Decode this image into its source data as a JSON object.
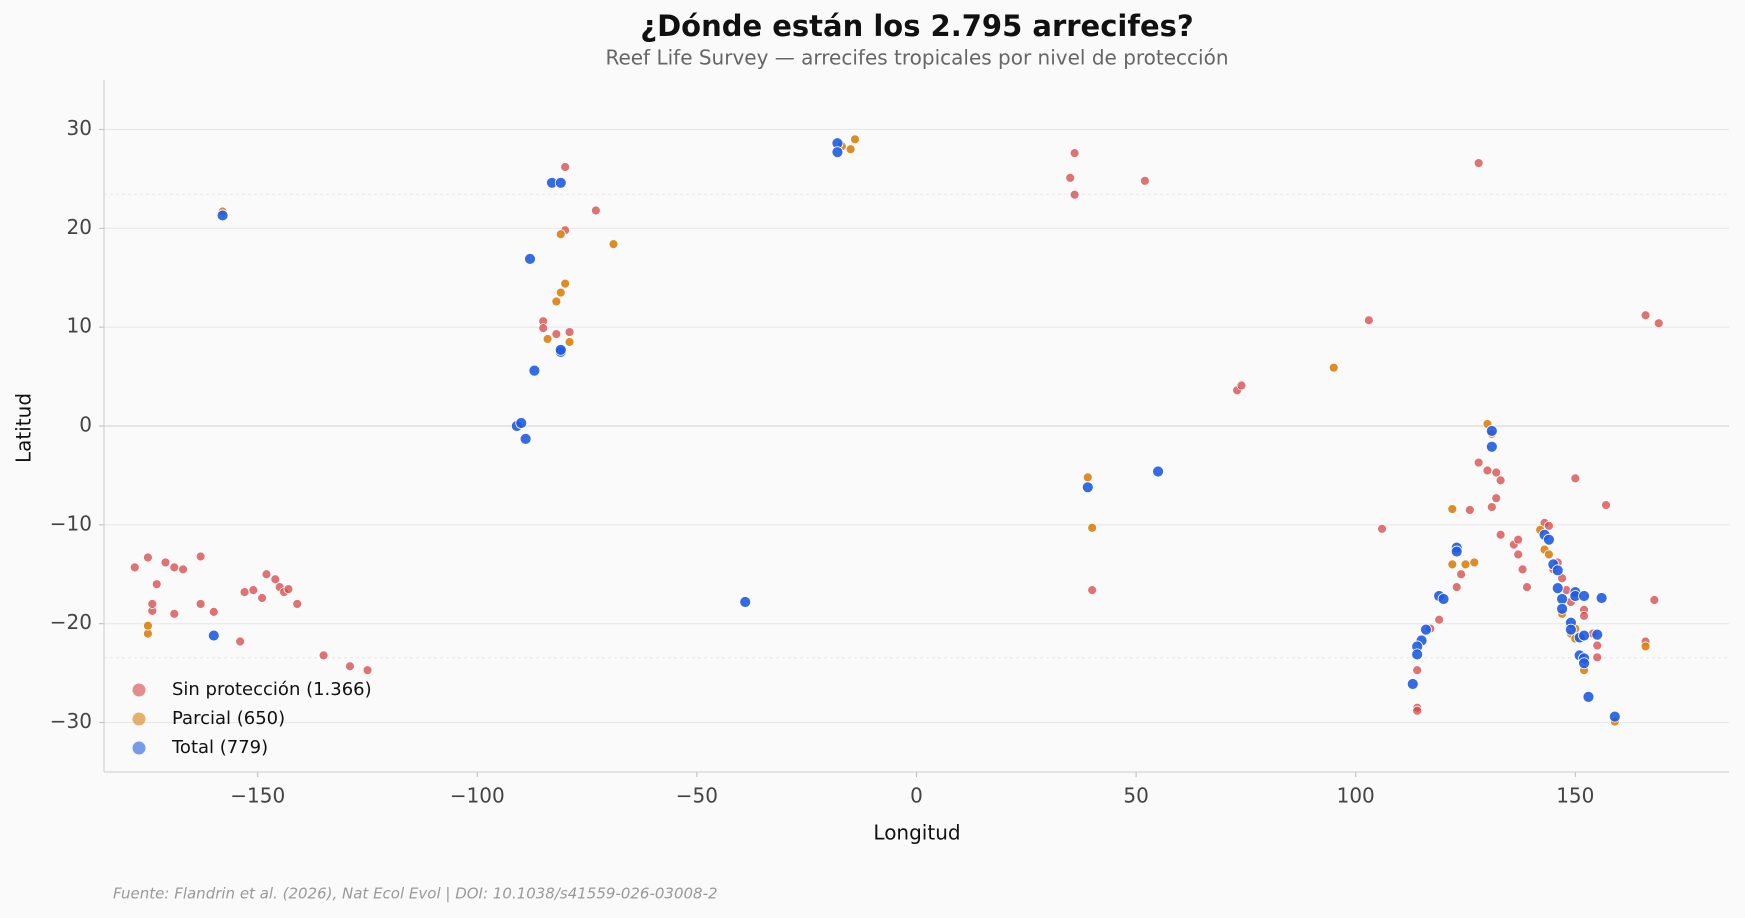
{
  "chart_data": {
    "type": "scatter",
    "title": "¿Dónde están los 2.795 arrecifes?",
    "subtitle": "Reef Life Survey — arrecifes tropicales por nivel de protección",
    "x_label": "Longitud",
    "y_label": "Latitud",
    "source": "Fuente: Flandrin et al. (2026), Nat Ecol Evol | DOI: 10.1038/s41559-026-03008-2",
    "xlim": [
      -185,
      185
    ],
    "ylim": [
      -35,
      35
    ],
    "xticks": [
      {
        "value": -150,
        "label": "−150"
      },
      {
        "value": -100,
        "label": "−100"
      },
      {
        "value": -50,
        "label": "−50"
      },
      0,
      50,
      100,
      150
    ],
    "yticks": [
      {
        "value": -30,
        "label": "−30"
      },
      {
        "value": -20,
        "label": "−20"
      },
      {
        "value": -10,
        "label": "−10"
      },
      0,
      10,
      20,
      30
    ],
    "grid": true,
    "hlines": [
      23.44,
      -23.44
    ],
    "legend": "lower left",
    "series": [
      {
        "name": "Sin protección (1.366)",
        "color": "#d64545",
        "x": [
          -178,
          -175,
          -173,
          -174,
          -171,
          -169,
          -167,
          -169,
          -174,
          -163,
          -163,
          -160,
          -154,
          -151,
          -149,
          -148,
          -146,
          -145,
          -144,
          -143,
          -141,
          -153,
          -135,
          -129,
          -125,
          -80,
          -80,
          -73,
          -85,
          -85,
          -82,
          -79,
          36,
          35,
          36,
          52,
          73,
          74,
          103,
          106,
          128,
          40,
          114,
          114,
          114,
          119,
          117,
          123,
          124,
          126,
          128,
          130,
          132,
          133,
          132,
          131,
          133,
          136,
          137,
          137,
          138,
          139,
          143,
          144,
          145,
          146,
          147,
          148,
          149,
          150,
          152,
          152,
          154,
          155,
          155,
          157,
          166,
          169,
          168,
          166
        ],
        "y": [
          -14.3,
          -13.3,
          -16,
          -18.7,
          -13.8,
          -14.3,
          -14.5,
          -19,
          -18,
          -13.2,
          -18,
          -18.8,
          -21.8,
          -16.6,
          -17.4,
          -15,
          -15.5,
          -16.3,
          -16.8,
          -16.5,
          -18,
          -16.8,
          -23.2,
          -24.3,
          -24.7,
          26.2,
          19.8,
          21.8,
          10.6,
          9.9,
          9.3,
          9.5,
          27.6,
          25.1,
          23.4,
          24.8,
          3.6,
          4.1,
          10.7,
          -10.4,
          26.6,
          -16.6,
          -28.5,
          -28.8,
          -24.7,
          -19.6,
          -20.5,
          -16.3,
          -15,
          -8.5,
          -3.7,
          -4.5,
          -4.7,
          -5.5,
          -7.3,
          -8.2,
          -11,
          -12,
          -11.5,
          -13,
          -14.5,
          -16.3,
          -9.8,
          -10.1,
          -14.5,
          -13.8,
          -15.4,
          -16.6,
          -17.8,
          -5.3,
          -18.6,
          -19.2,
          -21,
          -22.2,
          -23.4,
          -8,
          11.2,
          10.4,
          -17.6,
          -21.8
        ]
      },
      {
        "name": "Parcial (650)",
        "color": "#d97f10",
        "x": [
          -158,
          -81,
          -80,
          -81,
          -82,
          -84,
          -79,
          -69,
          -17,
          -15,
          -14,
          39,
          40,
          95,
          -175,
          -175,
          130,
          131,
          122,
          122,
          125,
          127,
          142,
          143,
          144,
          147,
          149,
          150,
          152,
          159,
          166,
          150
        ],
        "y": [
          21.7,
          19.4,
          14.4,
          13.5,
          12.6,
          8.8,
          8.5,
          18.4,
          28.3,
          28,
          29,
          -5.2,
          -10.3,
          5.9,
          -21,
          -20.2,
          0.2,
          -0.8,
          -8.4,
          -14,
          -14,
          -13.8,
          -10.5,
          -12.5,
          -13,
          -19,
          -21,
          -20.5,
          -24.7,
          -29.9,
          -22.3,
          -21.5
        ]
      },
      {
        "name": "Total (779)",
        "color": "#1f5be0",
        "x": [
          -158,
          -83,
          -81,
          -88,
          -87,
          -81,
          -81,
          -91,
          -90,
          -89,
          -18,
          -18,
          -39,
          39,
          55,
          -160,
          131,
          131,
          123,
          123,
          119,
          120,
          116,
          115,
          114,
          114,
          113,
          143,
          144,
          145,
          146,
          146,
          147,
          147,
          149,
          149,
          150,
          150,
          152,
          151,
          152,
          155,
          151,
          152,
          152,
          153,
          156,
          159
        ],
        "y": [
          21.3,
          24.6,
          24.6,
          16.9,
          5.6,
          7.5,
          7.7,
          0,
          0.3,
          -1.3,
          28.6,
          27.7,
          -17.8,
          -6.2,
          -4.6,
          -21.2,
          -0.5,
          -2.1,
          -12.3,
          -12.7,
          -17.2,
          -17.5,
          -20.6,
          -21.7,
          -22.3,
          -23.1,
          -26.1,
          -11,
          -11.5,
          -14,
          -14.6,
          -16.4,
          -17.5,
          -18.5,
          -19.9,
          -20.6,
          -16.8,
          -17.2,
          -17.2,
          -21.4,
          -21.2,
          -21.1,
          -23.2,
          -23.5,
          -24,
          -27.4,
          -17.4,
          -29.4
        ]
      }
    ]
  }
}
